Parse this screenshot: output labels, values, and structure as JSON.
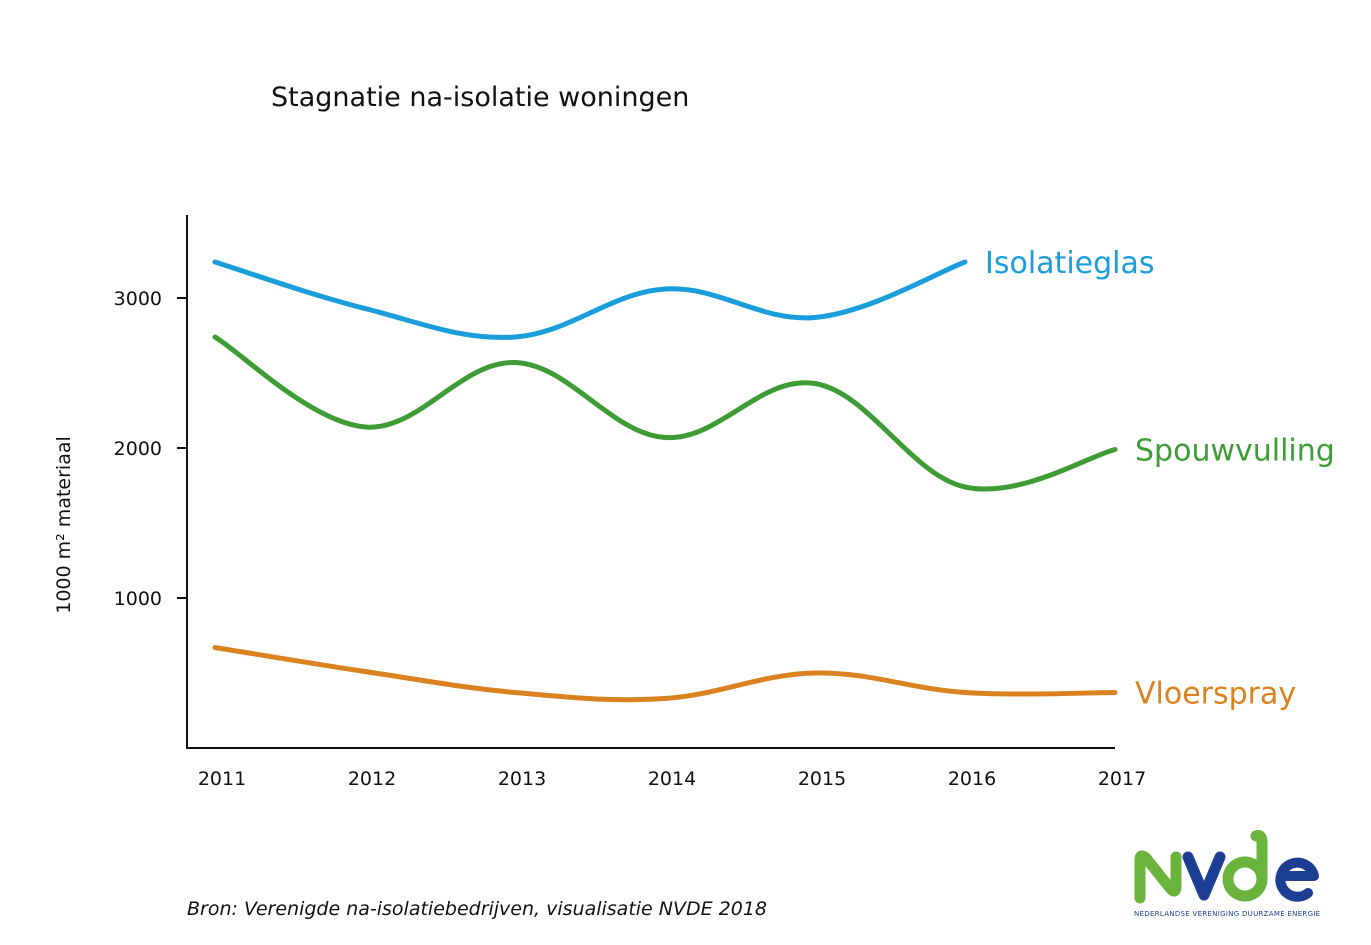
{
  "chart_data": {
    "type": "line",
    "title": "Stagnatie na-isolatie woningen",
    "ylabel": "1000 m² materiaal",
    "xlabel": "",
    "x": [
      "2011",
      "2012",
      "2013",
      "2014",
      "2015",
      "2016",
      "2017"
    ],
    "yticks": [
      "1000",
      "2000",
      "3000"
    ],
    "ylim": [
      0,
      3550
    ],
    "grid": false,
    "series": [
      {
        "name": "Isolatieglas",
        "color": "#1a9ddb",
        "values": [
          3240,
          2930,
          2740,
          3060,
          2870,
          3240,
          null
        ]
      },
      {
        "name": "Spouwvulling",
        "color": "#3e9c35",
        "values": [
          2740,
          2140,
          2570,
          2070,
          2430,
          1740,
          1990
        ]
      },
      {
        "name": "Vloerspray",
        "color": "#d9821f",
        "values": [
          670,
          510,
          370,
          330,
          500,
          370,
          370
        ]
      }
    ]
  },
  "source": "Bron: Verenigde na-isolatiebedrijven, visualisatie NVDE 2018",
  "logo": {
    "wordmark": "NVDE",
    "tagline": "NEDERLANDSE VERENIGING DUURZAME ENERGIE",
    "green": "#6ab43e",
    "blue": "#1c3f94"
  }
}
